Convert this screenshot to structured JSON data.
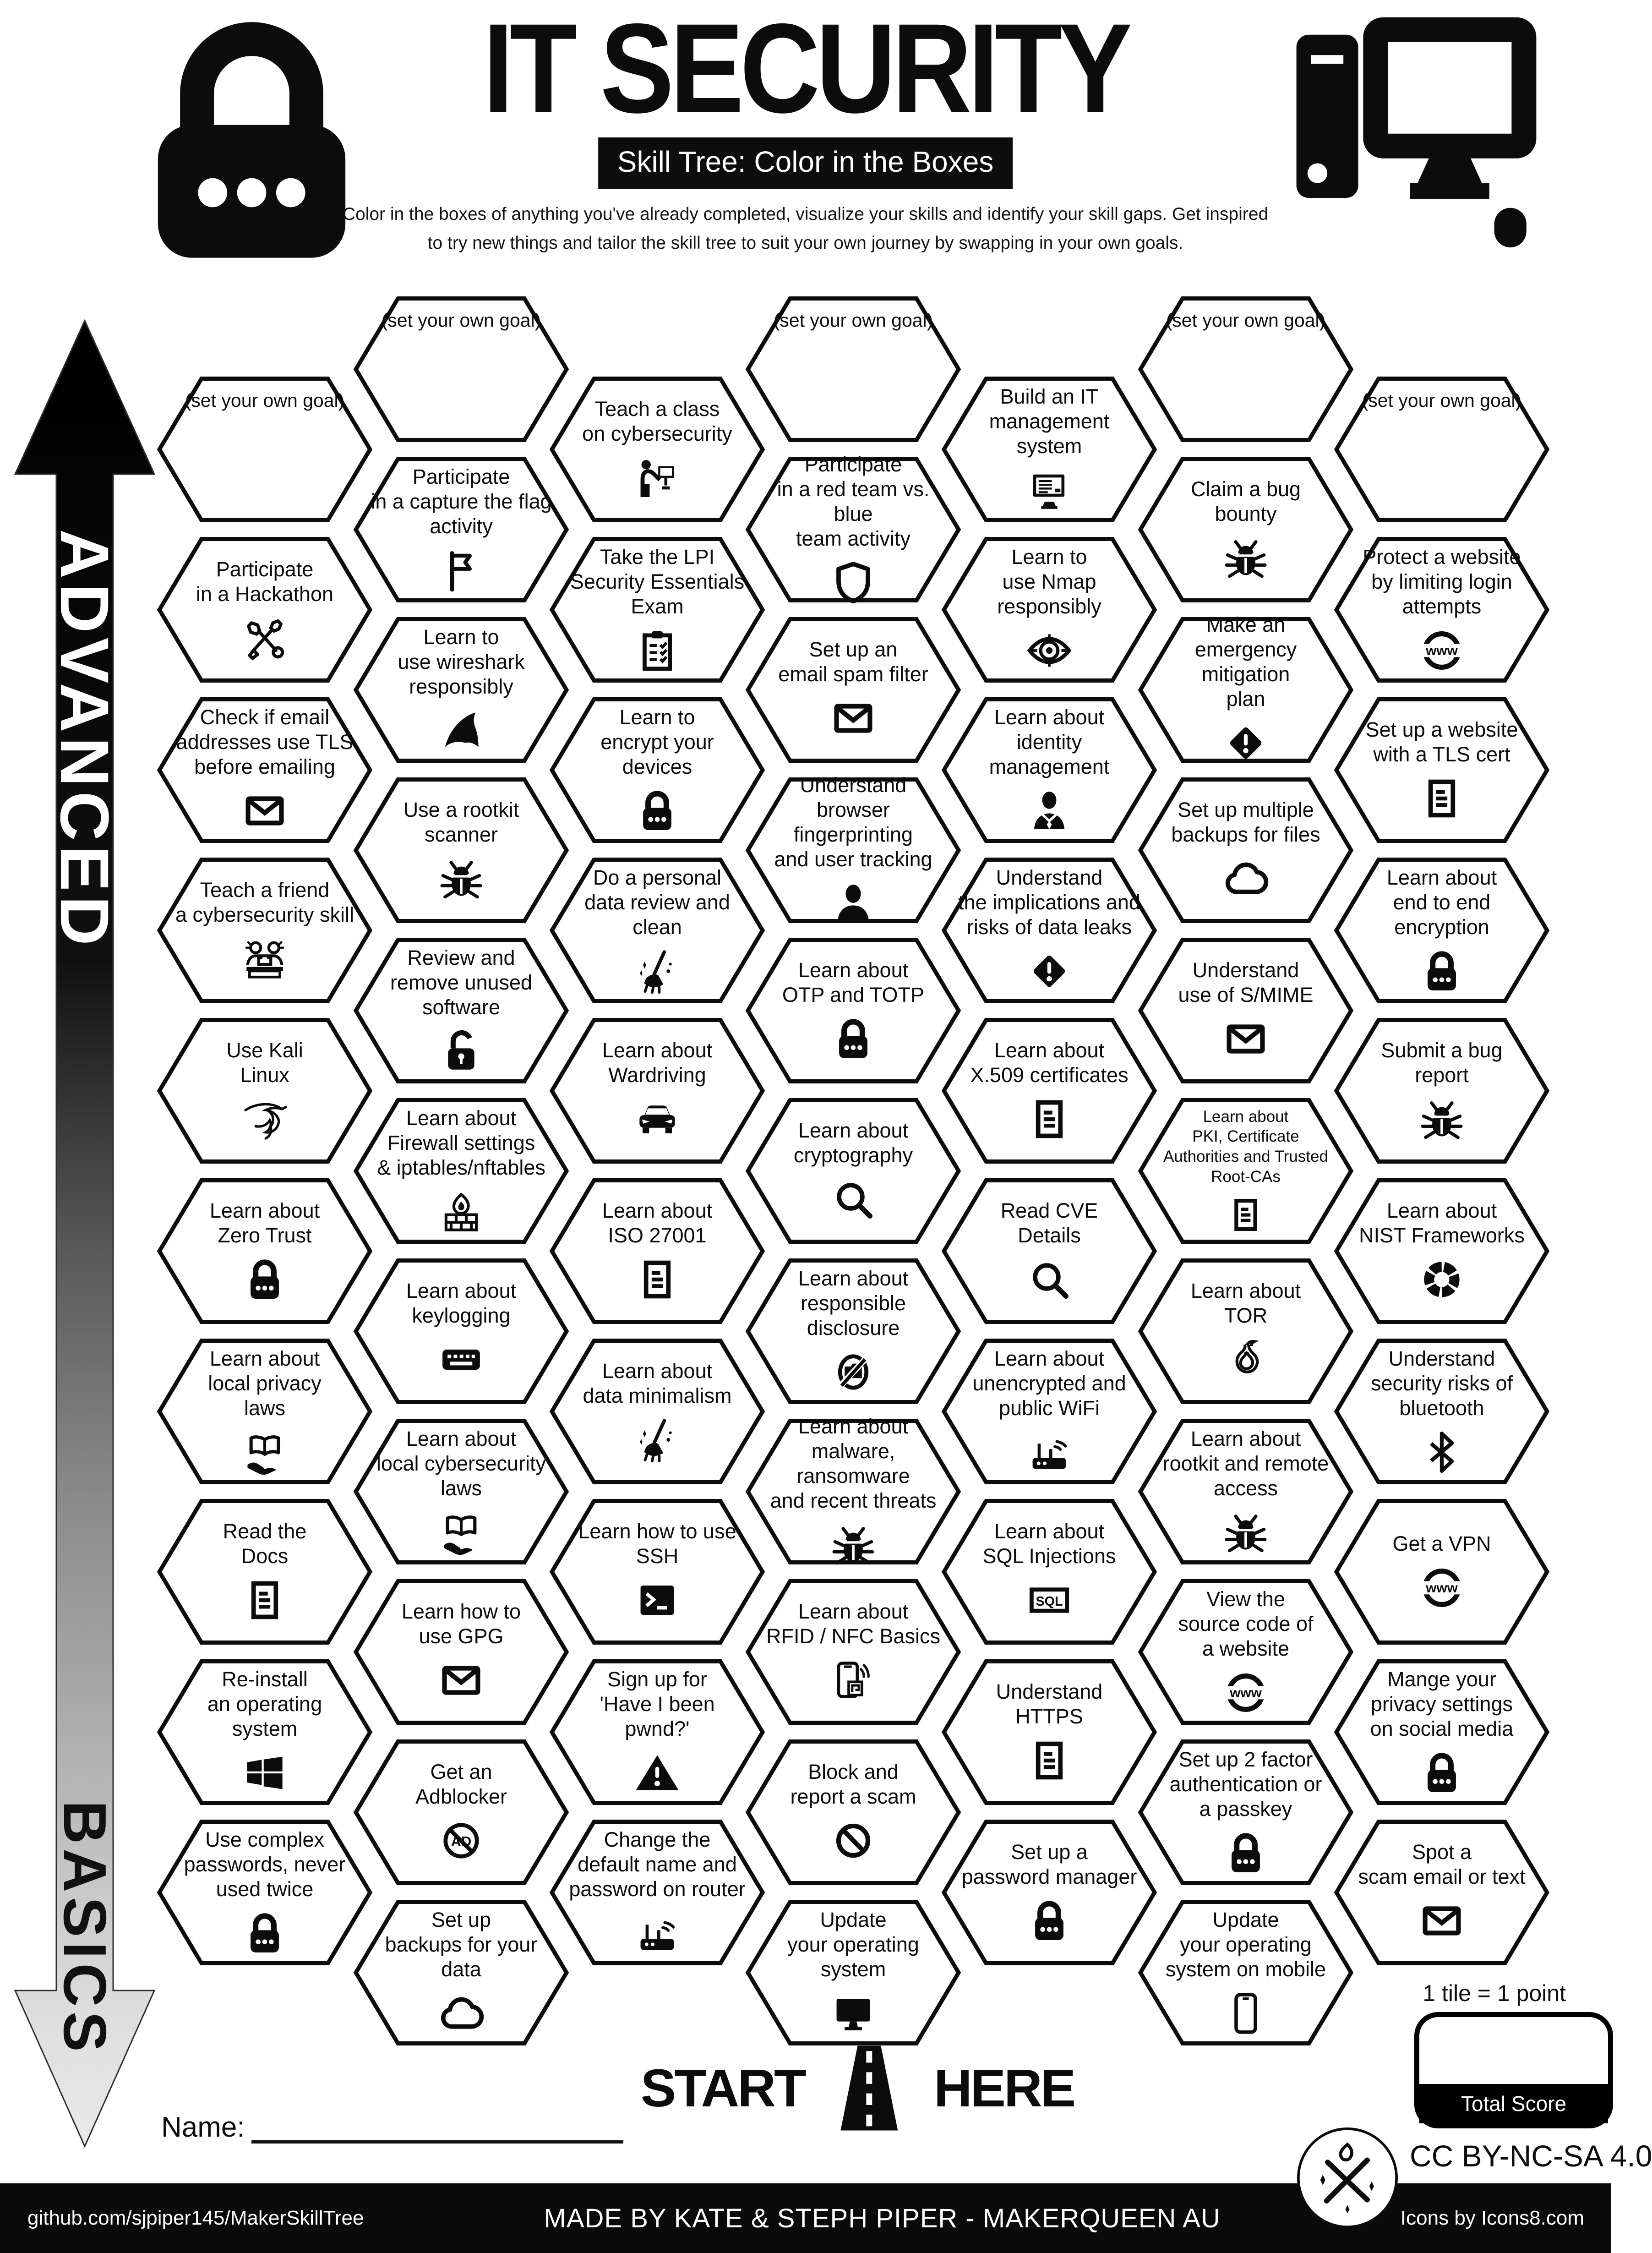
{
  "header": {
    "title": "IT SECURITY",
    "subtitle": "Skill Tree: Color in the Boxes",
    "description": "Color in the boxes of anything you've already completed, visualize your skills and identify your skill gaps.  Get inspired\nto try new things and tailor the skill tree to suit your own journey by swapping in your own goals.",
    "lock_icon": "padlock-icon",
    "computer_icon": "desktop-computer-icon"
  },
  "axis": {
    "top_label": "ADVANCED",
    "bottom_label": "BASICS"
  },
  "colors": {
    "ink": "#0c0c0c",
    "paper": "#ffffff"
  },
  "hexes": [
    {
      "col": 1,
      "row": 0,
      "goal": true,
      "label": "(set your own goal)"
    },
    {
      "col": 1,
      "row": 1,
      "label": "Participate\nin a Hackathon",
      "icon": "tools-icon"
    },
    {
      "col": 1,
      "row": 2,
      "label": "Check if email\naddresses use TLS\nbefore emailing",
      "icon": "envelope-icon"
    },
    {
      "col": 1,
      "row": 3,
      "label": "Teach a friend\na cybersecurity skill",
      "icon": "people-icon"
    },
    {
      "col": 1,
      "row": 4,
      "label": "Use Kali\nLinux",
      "icon": "kali-dragon-icon"
    },
    {
      "col": 1,
      "row": 5,
      "label": "Learn about\nZero Trust",
      "icon": "lock-icon"
    },
    {
      "col": 1,
      "row": 6,
      "label": "Learn about\nlocal privacy\nlaws",
      "icon": "book-hand-icon"
    },
    {
      "col": 1,
      "row": 7,
      "label": "Read the\nDocs",
      "icon": "doc-icon"
    },
    {
      "col": 1,
      "row": 8,
      "label": "Re-install\nan operating system",
      "icon": "windows-icon"
    },
    {
      "col": 1,
      "row": 9,
      "label": "Use complex\npasswords, never\nused twice",
      "icon": "lock-icon"
    },
    {
      "col": 2,
      "row": 0,
      "goal": true,
      "label": "(set your own goal)"
    },
    {
      "col": 2,
      "row": 1,
      "label": "Participate\nin a capture the flag\nactivity",
      "icon": "flag-icon"
    },
    {
      "col": 2,
      "row": 2,
      "label": "Learn to\nuse wireshark\nresponsibly",
      "icon": "shark-fin-icon"
    },
    {
      "col": 2,
      "row": 3,
      "label": "Use a rootkit\nscanner",
      "icon": "bug-icon"
    },
    {
      "col": 2,
      "row": 4,
      "label": "Review and\nremove unused\nsoftware",
      "icon": "open-lock-icon"
    },
    {
      "col": 2,
      "row": 5,
      "label": "Learn about\nFirewall settings\n& iptables/nftables",
      "icon": "firewall-icon"
    },
    {
      "col": 2,
      "row": 6,
      "label": "Learn about\nkeylogging",
      "icon": "keyboard-icon"
    },
    {
      "col": 2,
      "row": 7,
      "label": "Learn about\nlocal cybersecurity\nlaws",
      "icon": "book-hand-icon"
    },
    {
      "col": 2,
      "row": 8,
      "label": "Learn how to\nuse GPG",
      "icon": "envelope-icon"
    },
    {
      "col": 2,
      "row": 9,
      "label": "Get an\nAdblocker",
      "icon": "adblock-icon"
    },
    {
      "col": 2,
      "row": 10,
      "label": "Set up\nbackups for your data",
      "icon": "cloud-icon"
    },
    {
      "col": 3,
      "row": 0,
      "label": "Teach a class\non cybersecurity",
      "icon": "presentation-icon"
    },
    {
      "col": 3,
      "row": 1,
      "label": "Take the LPI\nSecurity Essentials\nExam",
      "icon": "clipboard-icon"
    },
    {
      "col": 3,
      "row": 2,
      "label": "Learn to\nencrypt your devices",
      "icon": "lock-icon"
    },
    {
      "col": 3,
      "row": 3,
      "label": "Do a personal\ndata review and clean",
      "icon": "broom-icon"
    },
    {
      "col": 3,
      "row": 4,
      "label": "Learn about\nWardriving",
      "icon": "car-icon"
    },
    {
      "col": 3,
      "row": 5,
      "label": "Learn about\nISO 27001",
      "icon": "doc-icon"
    },
    {
      "col": 3,
      "row": 6,
      "label": "Learn about\ndata minimalism",
      "icon": "broom-icon"
    },
    {
      "col": 3,
      "row": 7,
      "label": "Learn how to use\nSSH",
      "icon": "terminal-icon"
    },
    {
      "col": 3,
      "row": 8,
      "label": "Sign up for\n'Have I been pwnd?'",
      "icon": "warning-triangle-icon"
    },
    {
      "col": 3,
      "row": 9,
      "label": "Change the\ndefault name and\npassword on router",
      "icon": "router-icon"
    },
    {
      "col": 4,
      "row": 0,
      "goal": true,
      "label": "(set your own goal)"
    },
    {
      "col": 4,
      "row": 1,
      "label": "Participate\nin a red team vs. blue\nteam activity",
      "icon": "shield-icon"
    },
    {
      "col": 4,
      "row": 2,
      "label": "Set up an\nemail spam filter",
      "icon": "envelope-icon"
    },
    {
      "col": 4,
      "row": 3,
      "label": "Understand\nbrowser fingerprinting\nand user tracking",
      "icon": "person-icon"
    },
    {
      "col": 4,
      "row": 4,
      "label": "Learn about\nOTP and TOTP",
      "icon": "lock-icon"
    },
    {
      "col": 4,
      "row": 5,
      "label": "Learn about\ncryptography",
      "icon": "magnifier-icon"
    },
    {
      "col": 4,
      "row": 6,
      "label": "Learn about\nresponsible disclosure",
      "icon": "camera-off-icon"
    },
    {
      "col": 4,
      "row": 7,
      "label": "Learn about\nmalware, ransomware\nand recent threats",
      "icon": "bug-icon"
    },
    {
      "col": 4,
      "row": 8,
      "label": "Learn about\nRFID / NFC Basics",
      "icon": "nfc-phone-icon"
    },
    {
      "col": 4,
      "row": 9,
      "label": "Block and\nreport a scam",
      "icon": "block-icon"
    },
    {
      "col": 4,
      "row": 10,
      "label": "Update\nyour operating\nsystem",
      "icon": "monitor-icon"
    },
    {
      "col": 5,
      "row": 0,
      "label": "Build an IT\nmanagement system",
      "icon": "computer-icon"
    },
    {
      "col": 5,
      "row": 1,
      "label": "Learn to\nuse Nmap\nresponsibly",
      "icon": "eye-target-icon"
    },
    {
      "col": 5,
      "row": 2,
      "label": "Learn about\nidentity management",
      "icon": "person-suit-icon"
    },
    {
      "col": 5,
      "row": 3,
      "label": "Understand\nthe implications and\nrisks of data leaks",
      "icon": "warning-diamond-icon"
    },
    {
      "col": 5,
      "row": 4,
      "label": "Learn about\nX.509 certificates",
      "icon": "doc-icon"
    },
    {
      "col": 5,
      "row": 5,
      "label": "Read CVE\nDetails",
      "icon": "magnifier-icon"
    },
    {
      "col": 5,
      "row": 6,
      "label": "Learn about\nunencrypted and\npublic WiFi",
      "icon": "router-icon"
    },
    {
      "col": 5,
      "row": 7,
      "label": "Learn about\nSQL Injections",
      "icon": "sql-icon"
    },
    {
      "col": 5,
      "row": 8,
      "label": "Understand\nHTTPS",
      "icon": "doc-icon"
    },
    {
      "col": 5,
      "row": 9,
      "label": "Set up a\npassword manager",
      "icon": "lock-icon"
    },
    {
      "col": 6,
      "row": 0,
      "goal": true,
      "label": "(set your own goal)"
    },
    {
      "col": 6,
      "row": 1,
      "label": "Claim a bug\nbounty",
      "icon": "bug-icon"
    },
    {
      "col": 6,
      "row": 2,
      "label": "Make an\nemergency mitigation\nplan",
      "icon": "warning-diamond-icon"
    },
    {
      "col": 6,
      "row": 3,
      "label": "Set up multiple\nbackups for files",
      "icon": "cloud-icon"
    },
    {
      "col": 6,
      "row": 4,
      "label": "Understand\nuse of S/MIME",
      "icon": "envelope-icon"
    },
    {
      "col": 6,
      "row": 5,
      "small": true,
      "label": "Learn about\nPKI, Certificate\nAuthorities and Trusted\nRoot-CAs",
      "icon": "doc-icon"
    },
    {
      "col": 6,
      "row": 6,
      "label": "Learn about\nTOR",
      "icon": "onion-icon"
    },
    {
      "col": 6,
      "row": 7,
      "label": "Learn about\nrootkit and remote\naccess",
      "icon": "bug-icon"
    },
    {
      "col": 6,
      "row": 8,
      "label": "View the\nsource code of\na website",
      "icon": "www-icon"
    },
    {
      "col": 6,
      "row": 9,
      "label": "Set up 2 factor\nauthentication or\na passkey",
      "icon": "lock-icon"
    },
    {
      "col": 6,
      "row": 10,
      "label": "Update\nyour operating\nsystem on mobile",
      "icon": "phone-icon"
    },
    {
      "col": 7,
      "row": 0,
      "goal": true,
      "label": "(set your own goal)"
    },
    {
      "col": 7,
      "row": 1,
      "label": "Protect a website\nby limiting login\nattempts",
      "icon": "www-icon"
    },
    {
      "col": 7,
      "row": 2,
      "label": "Set up a website\nwith a TLS cert",
      "icon": "doc-icon"
    },
    {
      "col": 7,
      "row": 3,
      "label": "Learn about\nend to end\nencryption",
      "icon": "lock-icon"
    },
    {
      "col": 7,
      "row": 4,
      "label": "Submit a bug\nreport",
      "icon": "bug-icon"
    },
    {
      "col": 7,
      "row": 5,
      "label": "Learn about\nNIST Frameworks",
      "icon": "donut-icon"
    },
    {
      "col": 7,
      "row": 6,
      "label": "Understand\nsecurity risks of\nbluetooth",
      "icon": "bluetooth-icon"
    },
    {
      "col": 7,
      "row": 7,
      "label": "Get a VPN",
      "icon": "www-icon"
    },
    {
      "col": 7,
      "row": 8,
      "label": "Mange your\nprivacy settings\non social media",
      "icon": "lock-icon"
    },
    {
      "col": 7,
      "row": 9,
      "label": "Spot a\nscam email or text",
      "icon": "envelope-icon"
    }
  ],
  "footer": {
    "start_label": "START",
    "here_label": "HERE",
    "road_icon": "road-icon",
    "name_label": "Name:",
    "tile_points": "1 tile = 1 point",
    "total_score_label": "Total Score",
    "license": "CC BY-NC-SA 4.0",
    "logo_icon": "makerqueen-logo-icon",
    "repo": "github.com/sjpiper145/MakerSkillTree",
    "credit": "MADE BY KATE & STEPH PIPER  -  MAKERQUEEN AU",
    "icons_credit": "Icons by Icons8.com"
  }
}
